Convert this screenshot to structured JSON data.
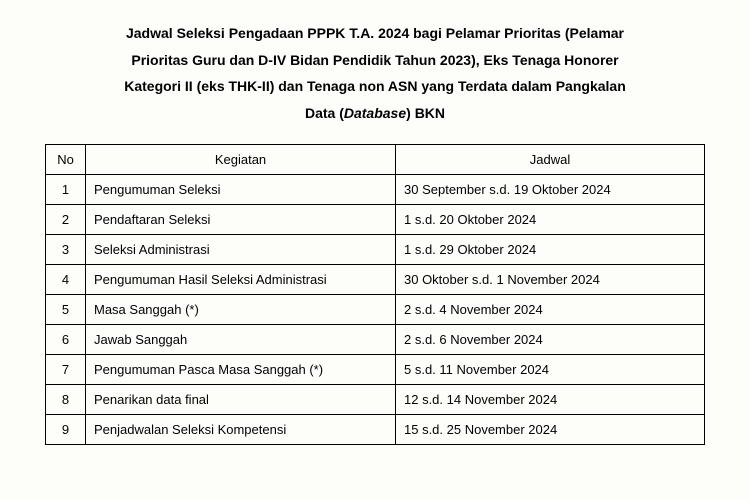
{
  "title": {
    "line1": "Jadwal Seleksi Pengadaan PPPK T.A. 2024 bagi Pelamar Prioritas (Pelamar",
    "line2": "Prioritas Guru dan D-IV Bidan Pendidik Tahun 2023), Eks Tenaga Honorer",
    "line3": "Kategori II (eks THK-II) dan Tenaga non ASN yang Terdata dalam Pangkalan",
    "line4_part1": "Data (",
    "line4_italic": "Database",
    "line4_part2": ") BKN"
  },
  "table": {
    "headers": {
      "no": "No",
      "kegiatan": "Kegiatan",
      "jadwal": "Jadwal"
    },
    "rows": [
      {
        "no": "1",
        "kegiatan": "Pengumuman Seleksi",
        "jadwal": "30 September s.d. 19 Oktober 2024"
      },
      {
        "no": "2",
        "kegiatan": "Pendaftaran Seleksi",
        "jadwal": "1 s.d. 20 Oktober 2024"
      },
      {
        "no": "3",
        "kegiatan": "Seleksi Administrasi",
        "jadwal": "1 s.d. 29 Oktober 2024"
      },
      {
        "no": "4",
        "kegiatan": "Pengumuman Hasil Seleksi Administrasi",
        "jadwal": "30 Oktober s.d. 1 November 2024"
      },
      {
        "no": "5",
        "kegiatan": "Masa Sanggah (*)",
        "jadwal": "2 s.d. 4 November 2024"
      },
      {
        "no": "6",
        "kegiatan": "Jawab Sanggah",
        "jadwal": "2 s.d. 6 November 2024"
      },
      {
        "no": "7",
        "kegiatan": "Pengumuman Pasca Masa Sanggah (*)",
        "jadwal": "5 s.d. 11 November 2024"
      },
      {
        "no": "8",
        "kegiatan": "Penarikan data final",
        "jadwal": "12 s.d. 14 November 2024"
      },
      {
        "no": "9",
        "kegiatan": "Penjadwalan Seleksi Kompetensi",
        "jadwal": "15 s.d. 25 November 2024"
      }
    ]
  }
}
